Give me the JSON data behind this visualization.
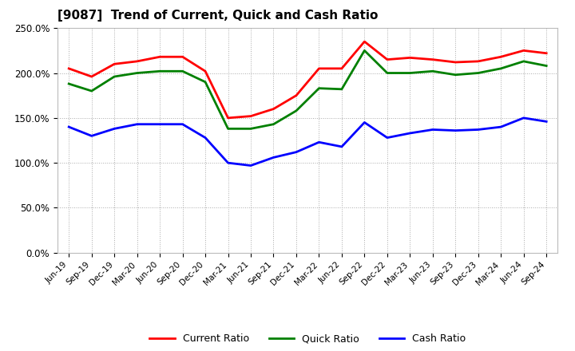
{
  "title": "[9087]  Trend of Current, Quick and Cash Ratio",
  "x_labels": [
    "Jun-19",
    "Sep-19",
    "Dec-19",
    "Mar-20",
    "Jun-20",
    "Sep-20",
    "Dec-20",
    "Mar-21",
    "Jun-21",
    "Sep-21",
    "Dec-21",
    "Mar-22",
    "Jun-22",
    "Sep-22",
    "Dec-22",
    "Mar-23",
    "Jun-23",
    "Sep-23",
    "Dec-23",
    "Mar-24",
    "Jun-24",
    "Sep-24"
  ],
  "current_ratio": [
    205,
    196,
    210,
    213,
    218,
    218,
    202,
    150,
    152,
    160,
    175,
    205,
    205,
    235,
    215,
    217,
    215,
    212,
    213,
    218,
    225,
    222
  ],
  "quick_ratio": [
    188,
    180,
    196,
    200,
    202,
    202,
    190,
    138,
    138,
    143,
    158,
    183,
    182,
    225,
    200,
    200,
    202,
    198,
    200,
    205,
    213,
    208
  ],
  "cash_ratio": [
    140,
    130,
    138,
    143,
    143,
    143,
    128,
    100,
    97,
    106,
    112,
    123,
    118,
    145,
    128,
    133,
    137,
    136,
    137,
    140,
    150,
    146
  ],
  "current_color": "#FF0000",
  "quick_color": "#008000",
  "cash_color": "#0000FF",
  "ylim": [
    0,
    250
  ],
  "yticks": [
    0,
    50,
    100,
    150,
    200,
    250
  ],
  "ytick_labels": [
    "0.0%",
    "50.0%",
    "100.0%",
    "150.0%",
    "200.0%",
    "250.0%"
  ],
  "background_color": "#FFFFFF",
  "plot_bg_color": "#FFFFFF",
  "grid_color": "#AAAAAA",
  "line_width": 2.0,
  "legend_labels": [
    "Current Ratio",
    "Quick Ratio",
    "Cash Ratio"
  ]
}
